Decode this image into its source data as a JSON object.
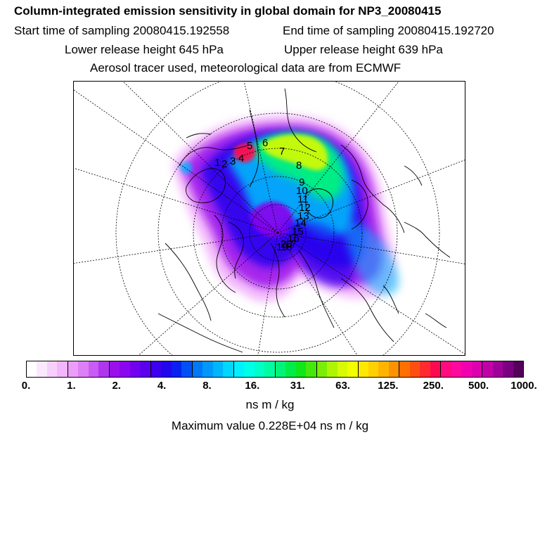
{
  "header": {
    "title": "Column-integrated emission sensitivity in global domain for NP3_20080415",
    "start_time": "Start time of sampling 20080415.192558",
    "end_time": "End time of sampling 20080415.192720",
    "lower_release": "Lower release height  645 hPa",
    "upper_release": "Upper release height  639 hPa",
    "tracer_note": "Aerosol tracer used, meteorological data are from ECMWF"
  },
  "map": {
    "projection": "north polar stereographic",
    "point_labels": [
      "1",
      "2",
      "3",
      "4",
      "5",
      "6",
      "7",
      "8",
      "9",
      "10",
      "11",
      "12",
      "13",
      "14",
      "15",
      "16",
      "17",
      "18",
      "19",
      "20"
    ]
  },
  "colorbar": {
    "tick_labels": [
      "0.",
      "1.",
      "2.",
      "4.",
      "8.",
      "16.",
      "31.",
      "63.",
      "125.",
      "250.",
      "500.",
      "1000."
    ],
    "colors": [
      "#ffffff",
      "#fbe8ff",
      "#f6cffd",
      "#f1b6fb",
      "#ec9dfa",
      "#dd7ff7",
      "#c85cf3",
      "#b035ef",
      "#9a10ea",
      "#8a06ee",
      "#7300ef",
      "#5a00ee",
      "#3c00ee",
      "#2206ee",
      "#0a20f0",
      "#0050f5",
      "#0078f8",
      "#0098fa",
      "#00b5fc",
      "#00d6fe",
      "#00f0ff",
      "#00ffe8",
      "#00ffc8",
      "#00fca0",
      "#00f578",
      "#00ec48",
      "#10e61a",
      "#45e80a",
      "#7aee08",
      "#aef505",
      "#d8fb03",
      "#f2ff00",
      "#ffe800",
      "#ffd000",
      "#ffb400",
      "#ff9200",
      "#ff7000",
      "#ff4f10",
      "#ff2a30",
      "#ff0a50",
      "#ff0a80",
      "#ff08a0",
      "#f200b0",
      "#dc00b0",
      "#c200a8",
      "#a0009a",
      "#7a0080",
      "#55005a"
    ],
    "units": "ns m / kg",
    "max_value_text": "Maximum value  0.228E+04 ns m / kg"
  }
}
